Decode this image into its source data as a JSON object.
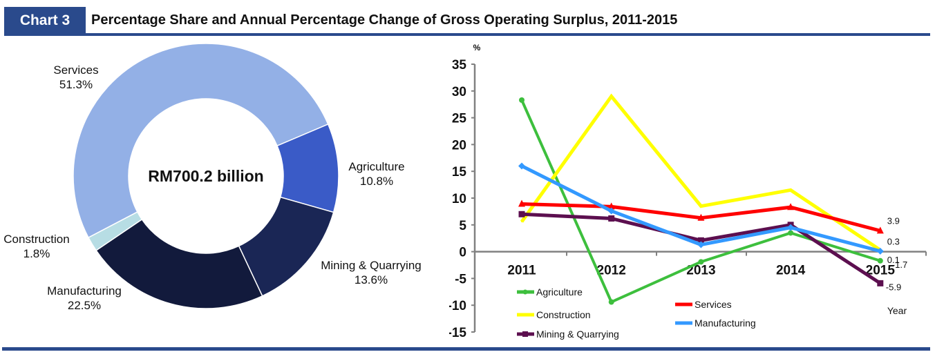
{
  "header": {
    "badge": "Chart  3",
    "title": "Percentage Share and Annual Percentage Change of Gross Operating Surplus, 2011-2015"
  },
  "chart_data": [
    {
      "type": "pie",
      "variant": "donut",
      "title": "Percentage Share of Gross Operating Surplus",
      "center_label": "RM700.2 billion",
      "slices": [
        {
          "label": "Services",
          "value": 51.3,
          "display": "51.3%",
          "color": "#93b0e6"
        },
        {
          "label": "Agriculture",
          "value": 10.8,
          "display": "10.8%",
          "color": "#3a5bc7"
        },
        {
          "label": "Mining & Quarrying",
          "value": 13.6,
          "display": "13.6%",
          "color": "#1a2655"
        },
        {
          "label": "Manufacturing",
          "value": 22.5,
          "display": "22.5%",
          "color": "#121a3c"
        },
        {
          "label": "Construction",
          "value": 1.8,
          "display": "1.8%",
          "color": "#b7dde4"
        }
      ]
    },
    {
      "type": "line",
      "title": "Annual Percentage Change of Gross Operating Surplus",
      "ylabel": "%",
      "xlabel": "Year",
      "ylim": [
        -15,
        35
      ],
      "yticks": [
        35,
        30,
        25,
        20,
        15,
        10,
        5,
        0,
        -5,
        -10,
        -15
      ],
      "categories": [
        "2011",
        "2012",
        "2013",
        "2014",
        "2015"
      ],
      "grid": false,
      "series": [
        {
          "name": "Agriculture",
          "color": "#3dbf3d",
          "marker": "circle",
          "values": [
            28.3,
            -9.4,
            -1.9,
            3.5,
            -1.7
          ],
          "end_label": "-1.7"
        },
        {
          "name": "Construction",
          "color": "#ffff00",
          "marker": "none",
          "values": [
            5.6,
            29.0,
            8.5,
            11.5,
            0.3
          ],
          "end_label": "0.3"
        },
        {
          "name": "Mining & Quarrying",
          "color": "#5c0f4f",
          "marker": "square",
          "values": [
            7.0,
            6.2,
            2.1,
            5.0,
            -5.9
          ],
          "end_label": "-5.9"
        },
        {
          "name": "Services",
          "color": "#ff0000",
          "marker": "triangle",
          "values": [
            8.9,
            8.4,
            6.3,
            8.3,
            3.9
          ],
          "end_label": "3.9"
        },
        {
          "name": "Manufacturing",
          "color": "#3399ff",
          "marker": "diamond",
          "values": [
            16.0,
            7.6,
            1.3,
            4.5,
            0.1
          ],
          "end_label": "0.1"
        }
      ],
      "legend": {
        "placement": "bottom-inside",
        "left_column": [
          "Agriculture",
          "Construction",
          "Mining & Quarrying"
        ],
        "right_column": [
          "Services",
          "Manufacturing"
        ]
      }
    }
  ]
}
